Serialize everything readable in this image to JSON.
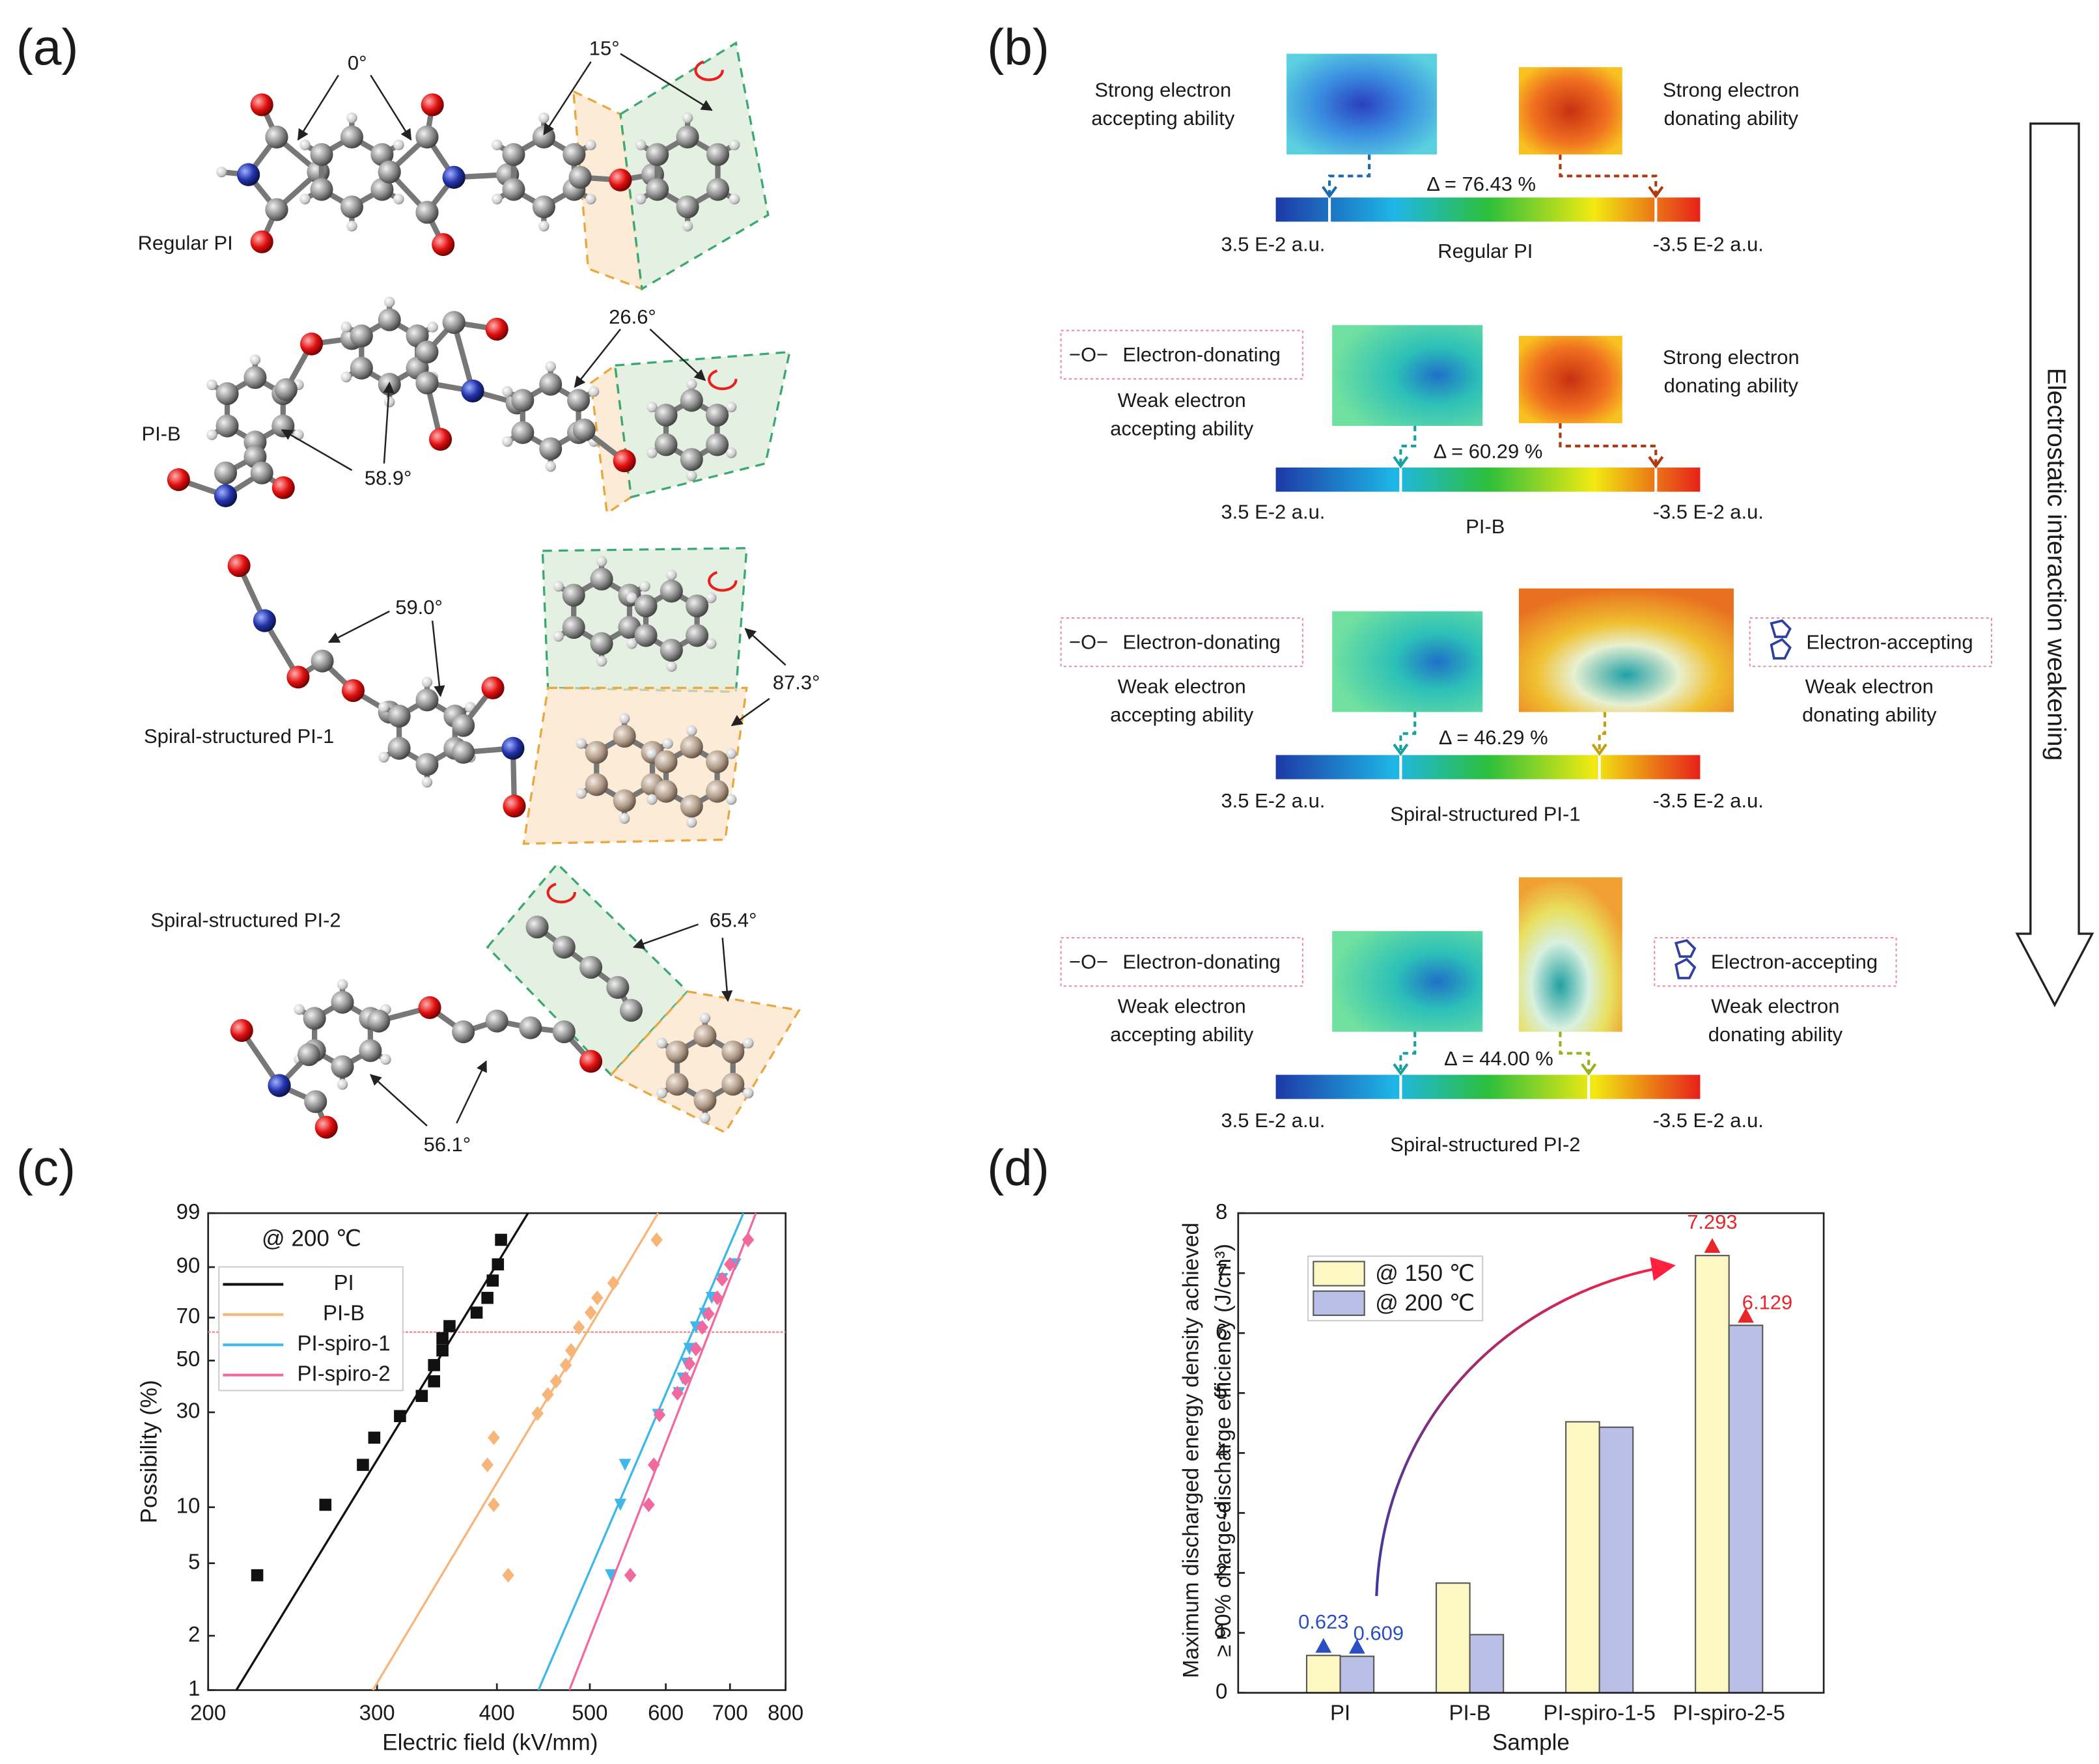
{
  "panels": {
    "a": "(a)",
    "b": "(b)",
    "c": "(c)",
    "d": "(d)"
  },
  "panel_a": {
    "molecules": [
      {
        "name": "Regular PI",
        "angles": [
          "0°",
          "15°"
        ]
      },
      {
        "name": "PI-B",
        "angles": [
          "26.6°",
          "58.9°"
        ]
      },
      {
        "name": "Spiral-structured PI-1",
        "angles": [
          "59.0°",
          "87.3°"
        ]
      },
      {
        "name": "Spiral-structured PI-2",
        "angles": [
          "65.4°",
          "56.1°"
        ]
      }
    ]
  },
  "panel_b": {
    "arrow_label": "Electrostatic interaction weakening",
    "tag_symbol": "−O−",
    "rows": [
      {
        "name": "Regular PI",
        "delta": "Δ = 76.43 %",
        "left_scale": "3.5 E-2 a.u.",
        "right_scale": "-3.5 E-2 a.u.",
        "acceptor": [
          "Strong electron",
          "accepting ability"
        ],
        "donor": [
          "Strong electron",
          "donating ability"
        ]
      },
      {
        "name": "PI-B",
        "delta": "Δ = 60.29 %",
        "left_scale": "3.5 E-2 a.u.",
        "right_scale": "-3.5 E-2 a.u.",
        "acceptor_tag": "Electron-donating",
        "acceptor": [
          "Weak electron",
          "accepting ability"
        ],
        "donor": [
          "Strong electron",
          "donating ability"
        ]
      },
      {
        "name": "Spiral-structured PI-1",
        "delta": "Δ = 46.29 %",
        "left_scale": "3.5 E-2 a.u.",
        "right_scale": "-3.5 E-2 a.u.",
        "acceptor_tag": "Electron-donating",
        "acceptor": [
          "Weak electron",
          "accepting ability"
        ],
        "donor_tag": "Electron-accepting",
        "donor": [
          "Weak electron",
          "donating ability"
        ]
      },
      {
        "name": "Spiral-structured PI-2",
        "delta": "Δ = 44.00 %",
        "left_scale": "3.5 E-2 a.u.",
        "right_scale": "-3.5 E-2 a.u.",
        "acceptor_tag": "Electron-donating",
        "acceptor": [
          "Weak electron",
          "accepting ability"
        ],
        "donor_tag": "Electron-accepting",
        "donor": [
          "Weak electron",
          "donating ability"
        ]
      }
    ]
  },
  "chart_data": [
    {
      "type": "scatter",
      "annotation": "@ 200 ℃",
      "xlabel": "Electric field (kV/mm)",
      "ylabel": "Possibility (%)",
      "xscale": "log",
      "yscale": "weibull",
      "xlim": [
        200,
        800
      ],
      "xticks": [
        200,
        300,
        400,
        500,
        600,
        700,
        800
      ],
      "ylim": [
        1,
        99
      ],
      "yticks": [
        1,
        2,
        5,
        10,
        30,
        50,
        70,
        90,
        99
      ],
      "reference_line": {
        "value": 63.2,
        "color": "#f08080"
      },
      "legend": "upper left",
      "series": [
        {
          "name": "PI",
          "color": "#111111",
          "marker": "square",
          "x": [
            225,
            265,
            290,
            298,
            317,
            334,
            344,
            344,
            351,
            351,
            357,
            381,
            391,
            396,
            401,
            404
          ],
          "values": [
            4.3,
            10.3,
            16.6,
            22.7,
            28.8,
            35.6,
            41.2,
            48.0,
            54.6,
            60.3,
            66.0,
            72.3,
            78.8,
            85.6,
            90.8,
            96.2
          ],
          "fit_x": [
            214,
            431
          ],
          "fit_values": [
            1,
            99
          ]
        },
        {
          "name": "PI-B",
          "color": "#f7b57a",
          "marker": "diamond",
          "x": [
            411,
            391,
            397,
            397,
            441,
            452,
            461,
            472,
            478,
            487,
            501,
            509,
            529,
            587
          ],
          "values": [
            4.3,
            16.6,
            22.7,
            10.3,
            29.6,
            36.1,
            41.2,
            48.0,
            54.6,
            65.4,
            72.3,
            78.8,
            84.7,
            96.2
          ],
          "fit_x": [
            297,
            589
          ],
          "fit_values": [
            1,
            99
          ]
        },
        {
          "name": "PI-spiro-1",
          "color": "#3fb7e8",
          "marker": "triangle",
          "x": [
            526,
            538,
            544,
            589,
            619,
            625,
            631,
            635,
            645,
            659,
            670,
            687,
            709
          ],
          "values": [
            4.3,
            10.3,
            16.6,
            29.2,
            36.6,
            42.3,
            48.6,
            55.3,
            65.4,
            71.7,
            78.8,
            86.1,
            90.8
          ],
          "fit_x": [
            442,
            723
          ],
          "fit_values": [
            1,
            99
          ]
        },
        {
          "name": "PI-spiro-2",
          "color": "#f06aa0",
          "marker": "diamond",
          "x": [
            551,
            576,
            583,
            591,
            617,
            629,
            635,
            645,
            655,
            665,
            679,
            687,
            700,
            731
          ],
          "values": [
            4.3,
            10.3,
            16.6,
            29.2,
            36.6,
            42.3,
            48.6,
            55.3,
            65.4,
            71.7,
            78.8,
            86.1,
            90.8,
            96.2
          ],
          "fit_x": [
            476,
            745
          ],
          "fit_values": [
            1,
            99
          ]
        }
      ]
    },
    {
      "type": "bar",
      "xlabel": "Sample",
      "ylabel": [
        "Maximum discharged energy density achieved",
        "≥ 90% charge-discharge efficiency  (J/cm³)"
      ],
      "categories": [
        "PI",
        "PI-B",
        "PI-spiro-1-5",
        "PI-spiro-2-5"
      ],
      "ylim": [
        0,
        8
      ],
      "yticks": [
        0,
        1,
        2,
        3,
        4,
        5,
        6,
        7,
        8
      ],
      "legend": "upper left",
      "label_colors": [
        "#2b4fc0",
        null,
        null,
        "#e8262a"
      ],
      "series": [
        {
          "name": "@ 150 ℃",
          "color": "#fdf7c3",
          "values": [
            0.623,
            1.83,
            4.52,
            7.293
          ],
          "value_labels": [
            "0.623",
            null,
            null,
            "7.293"
          ]
        },
        {
          "name": "@ 200 ℃",
          "color": "#b9bfe6",
          "values": [
            0.609,
            0.97,
            4.43,
            6.129
          ],
          "value_labels": [
            "0.609",
            null,
            null,
            "6.129"
          ]
        }
      ]
    }
  ]
}
